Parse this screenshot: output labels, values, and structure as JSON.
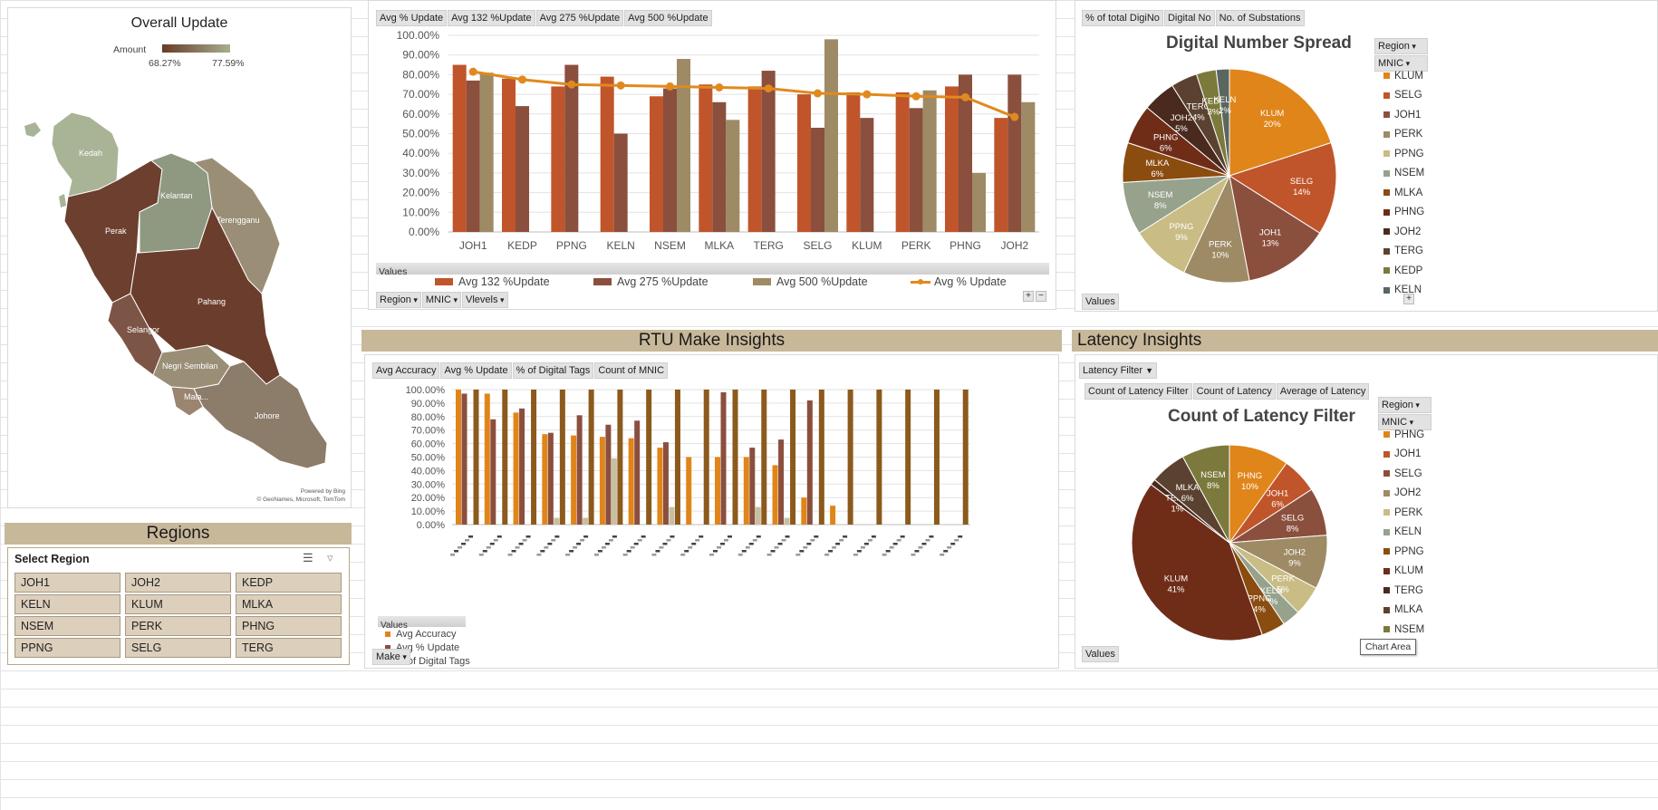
{
  "map_panel": {
    "title": "Overall Update",
    "legend_label": "Amount",
    "legend_min": "68.27%",
    "legend_max": "77.59%",
    "regions": [
      "Kedah",
      "Kelantan",
      "Terengganu",
      "Perak",
      "Pahang",
      "Selangor",
      "Negri Sembilan",
      "Mala...",
      "Johore"
    ],
    "attribution_1": "Powered by Bing",
    "attribution_2": "© GeoNames, Microsoft, TomTom"
  },
  "regions_band": {
    "title": "Regions"
  },
  "slicer": {
    "title": "Select Region",
    "items": [
      "JOH1",
      "JOH2",
      "KEDP",
      "KELN",
      "KLUM",
      "MLKA",
      "NSEM",
      "PERK",
      "PHNG",
      "PPNG",
      "SELG",
      "TERG"
    ]
  },
  "update_chart": {
    "field_buttons": [
      "Avg % Update",
      "Avg 132 %Update",
      "Avg 275 %Update",
      "Avg 500 %Update"
    ],
    "values_label": "Values",
    "filter_buttons": [
      "Region",
      "MNIC",
      "Vlevels"
    ],
    "legend": [
      "Avg 132 %Update",
      "Avg 275 %Update",
      "Avg 500 %Update",
      "Avg % Update"
    ],
    "colors": [
      "#c0552b",
      "#8b4f3e",
      "#9e8a64",
      "#e08a1e"
    ]
  },
  "rtu_band": {
    "title": "RTU Make Insights"
  },
  "rtu_chart": {
    "field_buttons": [
      "Avg Accuracy",
      "Avg % Update",
      "% of Digital Tags",
      "Count of MNIC"
    ],
    "values_label": "Values",
    "legend": [
      "Avg Accuracy",
      "Avg % Update",
      "% of Digital Tags"
    ],
    "filter_button": "Make",
    "colors": [
      "#e0851a",
      "#8b4f3e",
      "#c7bfa0",
      "#8b5a1c"
    ]
  },
  "digital_panel": {
    "field_buttons": [
      "% of total DigiNo",
      "Digital No",
      "No. of Substations"
    ],
    "title": "Digital Number Spread",
    "filter_buttons": [
      "Region",
      "MNIC"
    ],
    "values_label": "Values",
    "legend": [
      "KLUM",
      "SELG",
      "JOH1",
      "PERK",
      "PPNG",
      "NSEM",
      "MLKA",
      "PHNG",
      "JOH2",
      "TERG",
      "KEDP",
      "KELN"
    ],
    "legend_colors": [
      "#e0851a",
      "#c0552b",
      "#8b4f3e",
      "#9e8a64",
      "#c9bc84",
      "#96a28c",
      "#8b4c10",
      "#6f2d18",
      "#4a2a1e",
      "#5b4230",
      "#7b7a3c",
      "#5a6660"
    ]
  },
  "latency_band": {
    "title": "Latency Insights"
  },
  "latency_panel": {
    "filter_label": "Latency Filter",
    "field_buttons": [
      "Count of Latency Filter",
      "Count of Latency",
      "Average of Latency"
    ],
    "title": "Count of Latency Filter",
    "filter_buttons": [
      "Region",
      "MNIC"
    ],
    "values_label": "Values",
    "tooltip": "Chart Area",
    "legend": [
      "PHNG",
      "JOH1",
      "SELG",
      "JOH2",
      "PERK",
      "KELN",
      "PPNG",
      "KLUM",
      "TERG",
      "MLKA",
      "NSEM"
    ],
    "legend_colors": [
      "#e0851a",
      "#c0552b",
      "#8b4f3e",
      "#9e8a64",
      "#c9bc84",
      "#96a28c",
      "#8b4c10",
      "#6f2d18",
      "#4a2a1e",
      "#5b4230",
      "#7b7a3c"
    ]
  },
  "chart_data": [
    {
      "type": "bar",
      "categories": [
        "JOH1",
        "KEDP",
        "PPNG",
        "KELN",
        "NSEM",
        "MLKA",
        "TERG",
        "SELG",
        "KLUM",
        "PERK",
        "PHNG",
        "JOH2"
      ],
      "series": [
        {
          "name": "Avg 132 %Update",
          "values": [
            85,
            78,
            74,
            79,
            69,
            75,
            74,
            70,
            71,
            71,
            74,
            58
          ]
        },
        {
          "name": "Avg 275 %Update",
          "values": [
            77,
            64,
            85,
            50,
            73,
            66,
            82,
            53,
            58,
            63,
            80,
            80
          ]
        },
        {
          "name": "Avg 500 %Update",
          "values": [
            81,
            null,
            null,
            null,
            88,
            57,
            null,
            98,
            null,
            72,
            30,
            66
          ]
        },
        {
          "name": "Avg % Update",
          "type": "line",
          "values": [
            81.5,
            77.5,
            75,
            74.5,
            74,
            73.5,
            73,
            70.5,
            70,
            69,
            68.5,
            58.5
          ]
        }
      ],
      "ylim": [
        0,
        100
      ],
      "yticks": [
        "0.00%",
        "10.00%",
        "20.00%",
        "30.00%",
        "40.00%",
        "50.00%",
        "60.00%",
        "70.00%",
        "80.00%",
        "90.00%",
        "100.00%"
      ]
    },
    {
      "type": "bar",
      "series": [
        {
          "name": "Avg Accuracy",
          "values": [
            100,
            97,
            83,
            67,
            66,
            65,
            64,
            57,
            50,
            50,
            50,
            44,
            20,
            14,
            0,
            0,
            0,
            0
          ]
        },
        {
          "name": "Avg % Update",
          "values": [
            97,
            78,
            86,
            68,
            81,
            74,
            77,
            61,
            0,
            98,
            57,
            63,
            92,
            0,
            0,
            0,
            0,
            0
          ]
        },
        {
          "name": "% of Digital Tags",
          "values": [
            0,
            0,
            0,
            5,
            5,
            49,
            0,
            13,
            0,
            0,
            13,
            5,
            0,
            0,
            0,
            0,
            0,
            0
          ]
        },
        {
          "name": "Count of MNIC",
          "values": [
            100,
            100,
            100,
            100,
            100,
            100,
            100,
            100,
            100,
            100,
            100,
            100,
            100,
            100,
            100,
            100,
            100,
            100
          ]
        }
      ],
      "ylim": [
        0,
        100
      ],
      "yticks": [
        "0.00%",
        "10.00%",
        "20.00%",
        "30.00%",
        "40.00%",
        "50.00%",
        "60.00%",
        "70.00%",
        "80.00%",
        "90.00%",
        "100.00%"
      ]
    },
    {
      "type": "pie",
      "slices": [
        {
          "label": "KLUM",
          "value": 20
        },
        {
          "label": "SELG",
          "value": 14
        },
        {
          "label": "JOH1",
          "value": 13
        },
        {
          "label": "PERK",
          "value": 10
        },
        {
          "label": "PPNG",
          "value": 9
        },
        {
          "label": "NSEM",
          "value": 8
        },
        {
          "label": "MLKA",
          "value": 6
        },
        {
          "label": "PHNG",
          "value": 6
        },
        {
          "label": "JOH2",
          "value": 5
        },
        {
          "label": "TERG",
          "value": 4
        },
        {
          "label": "KEDP",
          "value": 3
        },
        {
          "label": "KELN",
          "value": 2
        }
      ],
      "pct_labels": [
        "20%",
        "14%",
        "13%",
        "10%",
        "9%",
        "8%",
        "6%",
        "6%",
        "5%",
        "4%",
        "3%",
        "2%"
      ]
    },
    {
      "type": "pie",
      "slices": [
        {
          "label": "PHNG",
          "value": 10
        },
        {
          "label": "JOH1",
          "value": 6
        },
        {
          "label": "SELG",
          "value": 8
        },
        {
          "label": "JOH2",
          "value": 9
        },
        {
          "label": "PERK",
          "value": 5
        },
        {
          "label": "KELN",
          "value": 3
        },
        {
          "label": "PPNG",
          "value": 4
        },
        {
          "label": "KLUM",
          "value": 41
        },
        {
          "label": "TERG",
          "value": 1
        },
        {
          "label": "MLKA",
          "value": 6
        },
        {
          "label": "NSEM",
          "value": 8
        }
      ],
      "pct_labels": [
        "10%",
        "6%",
        "8%",
        "9%",
        "5%",
        "3%",
        "4%",
        "41%",
        "1%",
        "6%",
        "8%"
      ]
    }
  ]
}
